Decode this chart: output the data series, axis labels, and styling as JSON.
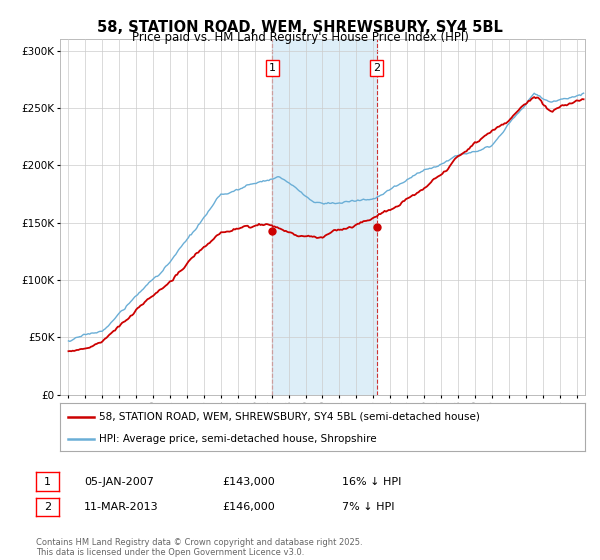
{
  "title": "58, STATION ROAD, WEM, SHREWSBURY, SY4 5BL",
  "subtitle": "Price paid vs. HM Land Registry's House Price Index (HPI)",
  "legend_line1": "58, STATION ROAD, WEM, SHREWSBURY, SY4 5BL (semi-detached house)",
  "legend_line2": "HPI: Average price, semi-detached house, Shropshire",
  "annotation1_date": "05-JAN-2007",
  "annotation1_price": "£143,000",
  "annotation1_hpi": "16% ↓ HPI",
  "annotation1_year": 2007.04,
  "annotation1_value": 143000,
  "annotation2_date": "11-MAR-2013",
  "annotation2_price": "£146,000",
  "annotation2_hpi": "7% ↓ HPI",
  "annotation2_year": 2013.2,
  "annotation2_value": 146000,
  "footer": "Contains HM Land Registry data © Crown copyright and database right 2025.\nThis data is licensed under the Open Government Licence v3.0.",
  "hpi_color": "#6aaed6",
  "price_color": "#cc0000",
  "shade_color": "#ddeef8",
  "grid_color": "#cccccc",
  "background_color": "#ffffff",
  "ylim": [
    0,
    310000
  ],
  "yticks": [
    0,
    50000,
    100000,
    150000,
    200000,
    250000,
    300000
  ],
  "xlim": [
    1994.5,
    2025.5
  ]
}
